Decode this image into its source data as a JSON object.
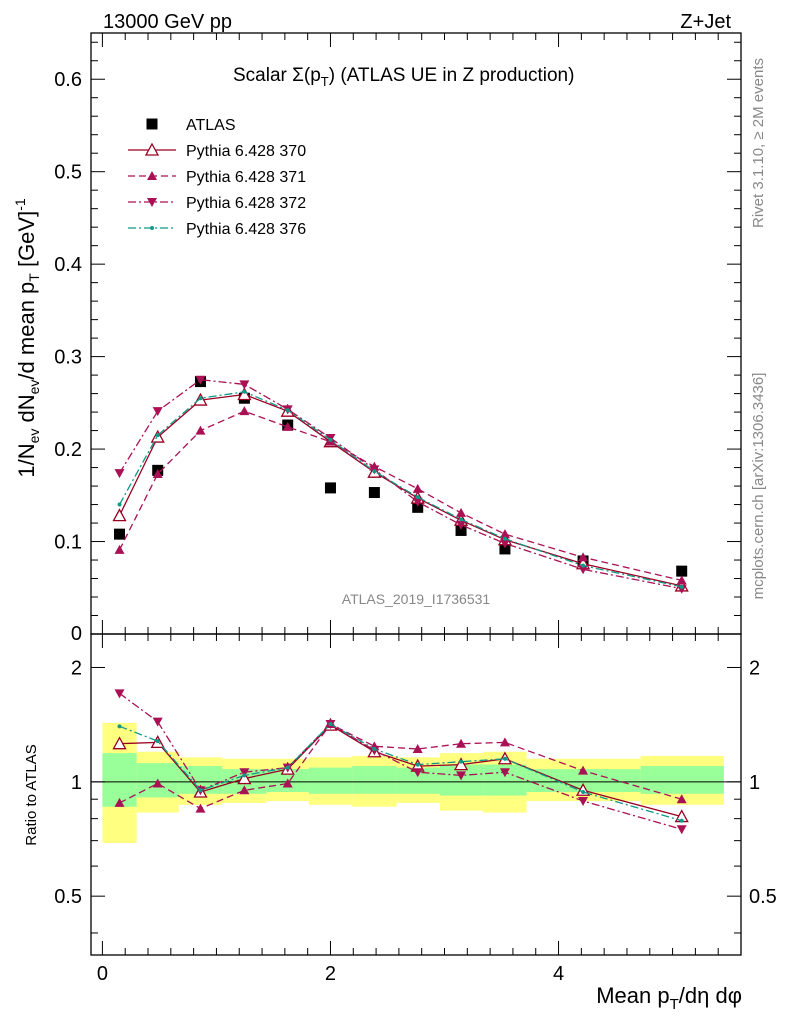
{
  "header": {
    "left": "13000 GeV pp",
    "right": "Z+Jet"
  },
  "side_labels": {
    "rivet": "Rivet 3.1.10, ≥ 2M events",
    "mcplots": "mcplots.cern.ch [arXiv:1306.3436]"
  },
  "watermark": "ATLAS_2019_I1736531",
  "colors": {
    "data": "#000000",
    "p370": "#990022",
    "p371": "#aa1155",
    "p372": "#aa1155",
    "p376": "#119988",
    "band_yellow": "#ffff80",
    "band_green": "#99ff99"
  },
  "chart_data": [
    {
      "type": "scatter",
      "title": "Scalar Σ(pT) (ATLAS UE in Z production)",
      "title_parts": {
        "main": "Scalar Σ(p",
        "sub": "T",
        "tail": ") (ATLAS UE in Z production)"
      },
      "ylabel": "1/Nev dNev/d mean pT [GeV]-1",
      "ylim": [
        0,
        0.65
      ],
      "yticks": [
        0.1,
        0.2,
        0.3,
        0.4,
        0.5,
        0.6
      ],
      "ytick_labels": [
        "0.1",
        "0.2",
        "0.3",
        "0.4",
        "0.5",
        "0.6"
      ],
      "y_zero_label": "0",
      "xlim": [
        -0.1,
        5.6
      ],
      "legend_position": "top-left",
      "x": [
        0.15,
        0.485,
        0.86,
        1.245,
        1.625,
        2.0,
        2.385,
        2.765,
        3.145,
        3.53,
        4.215,
        5.08
      ],
      "series": [
        {
          "name": "ATLAS",
          "key": "data",
          "marker": "square",
          "line": "none",
          "values": [
            0.108,
            0.177,
            0.273,
            0.255,
            0.226,
            0.158,
            0.153,
            0.137,
            0.112,
            0.092,
            0.079,
            0.068
          ]
        },
        {
          "name": "Pythia 6.428 370",
          "key": "p370",
          "marker": "triangle-up-open",
          "line": "solid",
          "values": [
            0.128,
            0.213,
            0.253,
            0.259,
            0.241,
            0.208,
            0.175,
            0.147,
            0.123,
            0.102,
            0.076,
            0.052
          ]
        },
        {
          "name": "Pythia 6.428 371",
          "key": "p371",
          "marker": "triangle-up",
          "line": "dashed",
          "values": [
            0.091,
            0.173,
            0.22,
            0.241,
            0.224,
            0.208,
            0.181,
            0.157,
            0.131,
            0.108,
            0.083,
            0.058
          ]
        },
        {
          "name": "Pythia 6.428 372",
          "key": "p372",
          "marker": "triangle-down",
          "line": "dashdot",
          "values": [
            0.174,
            0.241,
            0.275,
            0.27,
            0.243,
            0.212,
            0.178,
            0.143,
            0.118,
            0.098,
            0.07,
            0.049
          ]
        },
        {
          "name": "Pythia 6.428 376",
          "key": "p376",
          "marker": "dot",
          "line": "dashdot",
          "values": [
            0.14,
            0.215,
            0.255,
            0.262,
            0.242,
            0.21,
            0.176,
            0.148,
            0.124,
            0.103,
            0.074,
            0.051
          ]
        }
      ]
    },
    {
      "type": "scatter",
      "title": "",
      "ylabel": "Ratio to ATLAS",
      "xlabel": "Mean pT/dη dφ",
      "xlabel_parts": {
        "main": "Mean p",
        "sub": "T",
        "tail": "/dη dφ"
      },
      "ylim": [
        0.35,
        2.45
      ],
      "yticks": [
        0.5,
        1,
        2
      ],
      "ytick_labels": [
        "0.5",
        "1",
        "2"
      ],
      "xlim": [
        -0.1,
        5.6
      ],
      "xticks": [
        0,
        2,
        4
      ],
      "xtick_labels": [
        "0",
        "2",
        "4"
      ],
      "bins": [
        {
          "lo": 0.0,
          "hi": 0.3,
          "yellow": [
            0.69,
            1.43
          ],
          "green": [
            0.86,
            1.19
          ]
        },
        {
          "lo": 0.3,
          "hi": 0.67,
          "yellow": [
            0.83,
            1.2
          ],
          "green": [
            0.91,
            1.12
          ]
        },
        {
          "lo": 0.67,
          "hi": 1.05,
          "yellow": [
            0.87,
            1.16
          ],
          "green": [
            0.93,
            1.1
          ]
        },
        {
          "lo": 1.05,
          "hi": 1.44,
          "yellow": [
            0.88,
            1.15
          ],
          "green": [
            0.93,
            1.08
          ]
        },
        {
          "lo": 1.44,
          "hi": 1.81,
          "yellow": [
            0.89,
            1.15
          ],
          "green": [
            0.94,
            1.08
          ]
        },
        {
          "lo": 1.81,
          "hi": 2.19,
          "yellow": [
            0.87,
            1.16
          ],
          "green": [
            0.93,
            1.09
          ]
        },
        {
          "lo": 2.19,
          "hi": 2.58,
          "yellow": [
            0.86,
            1.17
          ],
          "green": [
            0.93,
            1.1
          ]
        },
        {
          "lo": 2.58,
          "hi": 2.96,
          "yellow": [
            0.88,
            1.16
          ],
          "green": [
            0.93,
            1.09
          ]
        },
        {
          "lo": 2.96,
          "hi": 3.34,
          "yellow": [
            0.84,
            1.19
          ],
          "green": [
            0.92,
            1.11
          ]
        },
        {
          "lo": 3.34,
          "hi": 3.72,
          "yellow": [
            0.83,
            1.2
          ],
          "green": [
            0.92,
            1.11
          ]
        },
        {
          "lo": 3.72,
          "hi": 4.72,
          "yellow": [
            0.89,
            1.15
          ],
          "green": [
            0.94,
            1.08
          ]
        },
        {
          "lo": 4.72,
          "hi": 5.45,
          "yellow": [
            0.87,
            1.17
          ],
          "green": [
            0.93,
            1.1
          ]
        }
      ],
      "series": [
        {
          "name": "Pythia 6.428 370",
          "key": "p370",
          "values": [
            1.26,
            1.27,
            0.94,
            1.02,
            1.08,
            1.41,
            1.2,
            1.1,
            1.11,
            1.15,
            0.95,
            0.81
          ]
        },
        {
          "name": "Pythia 6.428 371",
          "key": "p371",
          "values": [
            0.88,
            0.99,
            0.85,
            0.95,
            0.99,
            1.42,
            1.24,
            1.22,
            1.26,
            1.27,
            1.07,
            0.9
          ]
        },
        {
          "name": "Pythia 6.428 372",
          "key": "p372",
          "values": [
            1.71,
            1.44,
            0.95,
            1.06,
            1.09,
            1.42,
            1.21,
            1.06,
            1.04,
            1.06,
            0.89,
            0.75
          ]
        },
        {
          "name": "Pythia 6.428 376",
          "key": "p376",
          "values": [
            1.4,
            1.28,
            0.95,
            1.04,
            1.09,
            1.42,
            1.22,
            1.11,
            1.13,
            1.15,
            0.94,
            0.79
          ]
        }
      ]
    }
  ]
}
